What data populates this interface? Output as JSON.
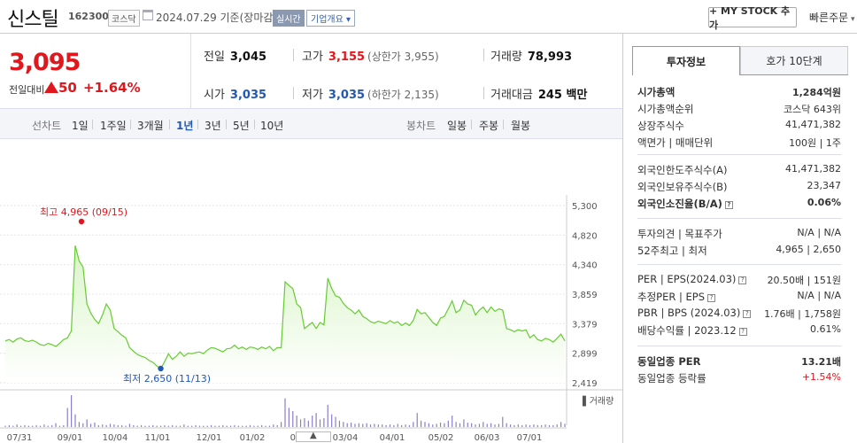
{
  "header": {
    "stock_name": "신스틸",
    "stock_code": "162300",
    "market": "코스닥",
    "basis_date": "2024.07.29 기준(장마감)",
    "realtime": "실시간",
    "company_overview": "기업개요",
    "my_stock_button": "+ MY STOCK 추가",
    "quick_order": "빠른주문"
  },
  "price": {
    "current": "3,095",
    "change_label": "전일대비",
    "change": "50",
    "change_pct": "+1.64%"
  },
  "stats": {
    "prev_label": "전일",
    "prev": "3,045",
    "high_label": "고가",
    "high": "3,155",
    "upper_limit": "(상한가 3,955)",
    "volume_label": "거래량",
    "volume": "78,993",
    "open_label": "시가",
    "open": "3,035",
    "low_label": "저가",
    "low": "3,035",
    "lower_limit": "(하한가 2,135)",
    "amount_label": "거래대금",
    "amount": "245 백만"
  },
  "toolbar": {
    "line_chart": "선차트",
    "periods": [
      "1일",
      "1주일",
      "3개월",
      "1년",
      "3년",
      "5년",
      "10년"
    ],
    "active_period": "1년",
    "candle_chart": "봉차트",
    "candles": [
      "일봉",
      "주봉",
      "월봉"
    ]
  },
  "chart_data": {
    "type": "area",
    "title": "",
    "x_tick_labels": [
      "07/31",
      "09/01",
      "10/04",
      "11/01",
      "12/01",
      "01/02",
      "02/01",
      "03/04",
      "04/01",
      "05/02",
      "06/03",
      "07/01"
    ],
    "y_tick_labels": [
      "5,300",
      "4,820",
      "4,340",
      "3,859",
      "3,379",
      "2,899",
      "2,419"
    ],
    "ylim": [
      2419,
      5300
    ],
    "high_annotation": "최고 4,965 (09/15)",
    "low_annotation": "최저 2,650 (11/13)",
    "volume_legend": "거래량",
    "line_color": "#66cc33",
    "fill_color": "#d9f5c8",
    "price_series": [
      3100,
      3120,
      3080,
      3130,
      3150,
      3105,
      3090,
      3110,
      3080,
      3040,
      3025,
      3060,
      3040,
      3010,
      3060,
      3120,
      3150,
      3260,
      4650,
      4400,
      4300,
      3700,
      3550,
      3450,
      3380,
      3520,
      3700,
      3600,
      3300,
      3250,
      3190,
      3150,
      2990,
      2930,
      2880,
      2850,
      2830,
      2780,
      2750,
      2690,
      2650,
      2760,
      2890,
      2800,
      2850,
      2920,
      2850,
      2900,
      2890,
      2910,
      2920,
      2890,
      2950,
      2990,
      2980,
      2950,
      2920,
      2970,
      2980,
      3030,
      2970,
      3000,
      2960,
      3000,
      2990,
      2960,
      3000,
      2970,
      3010,
      2940,
      2990,
      2990,
      4060,
      4000,
      3950,
      3700,
      3640,
      3300,
      3350,
      3400,
      3300,
      3400,
      3360,
      4120,
      3950,
      3830,
      3810,
      3710,
      3640,
      3600,
      3540,
      3600,
      3500,
      3460,
      3410,
      3390,
      3420,
      3400,
      3380,
      3430,
      3390,
      3410,
      3350,
      3390,
      3350,
      3430,
      3610,
      3540,
      3560,
      3480,
      3400,
      3350,
      3470,
      3500,
      3620,
      3750,
      3560,
      3600,
      3760,
      3700,
      3680,
      3520,
      3600,
      3650,
      3560,
      3650,
      3580,
      3620,
      3600,
      3300,
      3280,
      3250,
      3280,
      3260,
      3280,
      3150,
      3200,
      3120,
      3100,
      3140,
      3120,
      3080,
      3140,
      3210,
      3100
    ],
    "volume_series": [
      2,
      3,
      2,
      4,
      2,
      3,
      2,
      2,
      3,
      2,
      4,
      2,
      3,
      6,
      2,
      3,
      30,
      50,
      20,
      8,
      6,
      12,
      5,
      7,
      3,
      4,
      3,
      5,
      4,
      3,
      3,
      2,
      5,
      3,
      2,
      3,
      2,
      2,
      3,
      2,
      2,
      3,
      2,
      3,
      2,
      2,
      4,
      2,
      2,
      3,
      2,
      2,
      2,
      3,
      2,
      2,
      3,
      2,
      2,
      3,
      2,
      2,
      2,
      3,
      2,
      2,
      3,
      2,
      2,
      4,
      3,
      8,
      45,
      30,
      25,
      18,
      12,
      14,
      10,
      18,
      22,
      12,
      14,
      35,
      20,
      16,
      10,
      8,
      6,
      7,
      5,
      6,
      5,
      6,
      4,
      5,
      4,
      4,
      3,
      4,
      3,
      5,
      3,
      4,
      3,
      8,
      22,
      10,
      8,
      6,
      4,
      5,
      7,
      6,
      10,
      18,
      8,
      6,
      12,
      7,
      6,
      4,
      5,
      8,
      5,
      6,
      4,
      5,
      16,
      6,
      4,
      3,
      4,
      3,
      4,
      3,
      4,
      3,
      3,
      4,
      3,
      3,
      4,
      8,
      5
    ]
  },
  "right_panel": {
    "tab_active": "투자정보",
    "tab_other": "호가 10단계",
    "group1": [
      {
        "k": "시가총액",
        "v": "1,284억원",
        "bold": true
      },
      {
        "k": "시가총액순위",
        "v": "코스닥 643위"
      },
      {
        "k": "상장주식수",
        "v": "41,471,382"
      },
      {
        "k": "액면가 | 매매단위",
        "v": "100원 | 1주"
      }
    ],
    "group2": [
      {
        "k": "외국인한도주식수(A)",
        "v": "41,471,382"
      },
      {
        "k": "외국인보유주식수(B)",
        "v": "23,347"
      },
      {
        "k": "외국인소진율(B/A)",
        "v": "0.06%",
        "bold": true,
        "q": true
      }
    ],
    "group3": [
      {
        "k": "투자의견 | 목표주가",
        "v": "N/A | N/A"
      },
      {
        "k": "52주최고 | 최저",
        "v": "4,965 | 2,650"
      }
    ],
    "group4": [
      {
        "k": "PER | EPS(2024.03)",
        "v": "20.50배 | 151원",
        "q": true
      },
      {
        "k": "추정PER | EPS",
        "v": "N/A | N/A",
        "q": true
      },
      {
        "k": "PBR | BPS (2024.03)",
        "v": "1.76배 | 1,758원",
        "q": true
      },
      {
        "k": "배당수익률 | 2023.12",
        "v": "0.61%",
        "q": true
      }
    ],
    "group5": [
      {
        "k": "동일업종 PER",
        "v": "13.21배",
        "bold": true
      },
      {
        "k": "동일업종 등락률",
        "v": "+1.54%",
        "red": true
      }
    ]
  }
}
